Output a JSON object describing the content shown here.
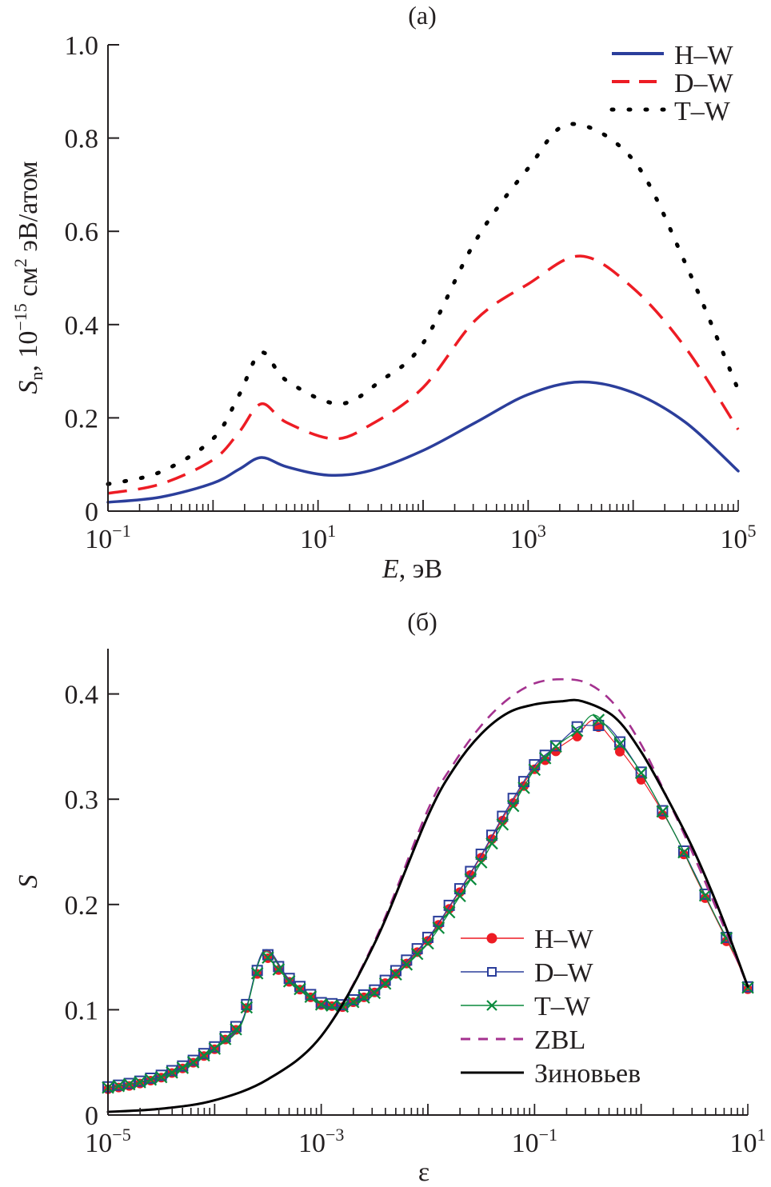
{
  "chart_data": [
    {
      "id": "a",
      "type": "line",
      "panel_label": "(a)",
      "xscale": "log",
      "xlabel": "E, эВ",
      "xlabel_italic_part": "E",
      "xlabel_rest": ", эВ",
      "ylabel": "Sn, 10^-15 см^2 эВ/атом",
      "ylabel_parts": {
        "S": "S",
        "sub": "n",
        "mid": ", 10",
        "exp": "−15",
        "unit": " см",
        "unit_exp": "2",
        "tail": " эВ/атом"
      },
      "xlim_log10": [
        -1,
        5
      ],
      "ylim": [
        0,
        1.0
      ],
      "x_ticks": [
        {
          "log10": -1,
          "base": "10",
          "exp": "−1"
        },
        {
          "log10": 1,
          "base": "10",
          "exp": "1"
        },
        {
          "log10": 3,
          "base": "10",
          "exp": "3"
        },
        {
          "log10": 5,
          "base": "10",
          "exp": "5"
        }
      ],
      "y_ticks": [
        {
          "value": 0,
          "label": "0"
        },
        {
          "value": 0.2,
          "label": "0.2"
        },
        {
          "value": 0.4,
          "label": "0.4"
        },
        {
          "value": 0.6,
          "label": "0.6"
        },
        {
          "value": 0.8,
          "label": "0.8"
        },
        {
          "value": 1.0,
          "label": "1.0"
        }
      ],
      "legend_position": "top-right",
      "series": [
        {
          "name": "H–W",
          "color": "#2b3e9b",
          "style": "solid",
          "x_log10": [
            -1,
            -0.5,
            0,
            0.25,
            0.46,
            0.7,
            1.1,
            1.5,
            2,
            2.5,
            3,
            3.5,
            4,
            4.5,
            5
          ],
          "values": [
            0.019,
            0.03,
            0.06,
            0.09,
            0.115,
            0.095,
            0.077,
            0.087,
            0.13,
            0.19,
            0.25,
            0.277,
            0.254,
            0.19,
            0.086
          ]
        },
        {
          "name": "D–W",
          "color": "#ed1c24",
          "style": "dashed",
          "x_log10": [
            -1,
            -0.5,
            0,
            0.25,
            0.46,
            0.7,
            1.15,
            1.5,
            2,
            2.5,
            3,
            3.5,
            4,
            4.5,
            5
          ],
          "values": [
            0.038,
            0.058,
            0.11,
            0.17,
            0.23,
            0.19,
            0.155,
            0.185,
            0.265,
            0.41,
            0.487,
            0.547,
            0.478,
            0.35,
            0.175
          ]
        },
        {
          "name": "T–W",
          "color": "#000000",
          "style": "dotted",
          "x_log10": [
            -1,
            -0.5,
            0,
            0.25,
            0.46,
            0.7,
            1.2,
            1.6,
            2,
            2.5,
            3,
            3.4,
            4,
            4.5,
            5
          ],
          "values": [
            0.058,
            0.084,
            0.155,
            0.25,
            0.34,
            0.28,
            0.23,
            0.28,
            0.36,
            0.58,
            0.735,
            0.83,
            0.753,
            0.53,
            0.26
          ]
        }
      ]
    },
    {
      "id": "b",
      "type": "line",
      "panel_label": "(б)",
      "xscale": "log",
      "xlabel": "ε",
      "ylabel": "S",
      "xlim_log10": [
        -5,
        1
      ],
      "ylim": [
        0,
        0.443
      ],
      "x_ticks": [
        {
          "log10": -5,
          "base": "10",
          "exp": "−5"
        },
        {
          "log10": -3,
          "base": "10",
          "exp": "−3"
        },
        {
          "log10": -1,
          "base": "10",
          "exp": "−1"
        },
        {
          "log10": 1,
          "base": "10",
          "exp": "1"
        }
      ],
      "y_ticks": [
        {
          "value": 0,
          "label": "0"
        },
        {
          "value": 0.1,
          "label": "0.1"
        },
        {
          "value": 0.2,
          "label": "0.2"
        },
        {
          "value": 0.3,
          "label": "0.3"
        },
        {
          "value": 0.4,
          "label": "0.4"
        }
      ],
      "legend_position": "bottom-right",
      "series": [
        {
          "name": "H–W",
          "color": "#ed1c24",
          "style": "solid-marker",
          "marker": "filled-circle",
          "x_log10": [
            -5,
            -4.75,
            -4.5,
            -4.25,
            -4,
            -3.75,
            -3.54,
            -3.3,
            -3,
            -2.8,
            -2.5,
            -2.25,
            -2,
            -1.75,
            -1.5,
            -1.25,
            -1,
            -0.8,
            -0.6,
            -0.45,
            -0.3,
            0,
            0.3,
            0.5,
            0.7,
            0.9,
            1
          ],
          "values": [
            0.026,
            0.03,
            0.037,
            0.048,
            0.064,
            0.087,
            0.155,
            0.128,
            0.106,
            0.104,
            0.118,
            0.14,
            0.167,
            0.205,
            0.246,
            0.29,
            0.33,
            0.347,
            0.361,
            0.375,
            0.36,
            0.32,
            0.27,
            0.228,
            0.187,
            0.146,
            0.121
          ]
        },
        {
          "name": "D–W",
          "color": "#2b3e9b",
          "style": "solid-marker",
          "marker": "open-square",
          "x_log10": [
            -5,
            -4.75,
            -4.5,
            -4.25,
            -4,
            -3.75,
            -3.54,
            -3.3,
            -3,
            -2.8,
            -2.5,
            -2.25,
            -2,
            -1.75,
            -1.5,
            -1.25,
            -1,
            -0.8,
            -0.6,
            -0.45,
            -0.3,
            0,
            0.3,
            0.5,
            0.7,
            0.9,
            1
          ],
          "values": [
            0.026,
            0.03,
            0.037,
            0.048,
            0.064,
            0.088,
            0.156,
            0.129,
            0.106,
            0.104,
            0.118,
            0.141,
            0.168,
            0.206,
            0.247,
            0.292,
            0.332,
            0.35,
            0.368,
            0.37,
            0.368,
            0.325,
            0.27,
            0.23,
            0.188,
            0.148,
            0.121
          ]
        },
        {
          "name": "T–W",
          "color": "#0a8a3c",
          "style": "solid-marker",
          "marker": "cross",
          "x_log10": [
            -5,
            -4.75,
            -4.5,
            -4.25,
            -4,
            -3.75,
            -3.54,
            -3.3,
            -3,
            -2.8,
            -2.5,
            -2.25,
            -2,
            -1.75,
            -1.5,
            -1.25,
            -1,
            -0.8,
            -0.6,
            -0.45,
            -0.3,
            0,
            0.3,
            0.5,
            0.7,
            0.9,
            1
          ],
          "values": [
            0.026,
            0.03,
            0.036,
            0.047,
            0.063,
            0.086,
            0.154,
            0.127,
            0.105,
            0.103,
            0.116,
            0.138,
            0.163,
            0.2,
            0.24,
            0.285,
            0.328,
            0.35,
            0.365,
            0.38,
            0.366,
            0.325,
            0.27,
            0.229,
            0.188,
            0.148,
            0.121
          ]
        },
        {
          "name": "ZBL",
          "color": "#a4328f",
          "style": "dashed",
          "x_log10": [
            -5,
            -4.5,
            -4,
            -3.5,
            -3,
            -2.5,
            -2,
            -1.75,
            -1.5,
            -1.25,
            -1,
            -0.75,
            -0.5,
            -0.25,
            0,
            0.25,
            0.5,
            0.75,
            1
          ],
          "values": [
            0.003,
            0.006,
            0.014,
            0.034,
            0.075,
            0.165,
            0.29,
            0.335,
            0.37,
            0.395,
            0.41,
            0.414,
            0.41,
            0.39,
            0.352,
            0.3,
            0.245,
            0.185,
            0.122
          ]
        },
        {
          "name": "Зиновьев",
          "color": "#000000",
          "style": "solid",
          "x_log10": [
            -5,
            -4.5,
            -4,
            -3.5,
            -3,
            -2.5,
            -2,
            -1.75,
            -1.5,
            -1.25,
            -1,
            -0.75,
            -0.55,
            -0.25,
            0,
            0.25,
            0.5,
            0.75,
            1
          ],
          "values": [
            0.003,
            0.006,
            0.014,
            0.034,
            0.075,
            0.163,
            0.284,
            0.33,
            0.362,
            0.382,
            0.39,
            0.393,
            0.393,
            0.378,
            0.345,
            0.3,
            0.25,
            0.19,
            0.122
          ]
        }
      ]
    }
  ]
}
